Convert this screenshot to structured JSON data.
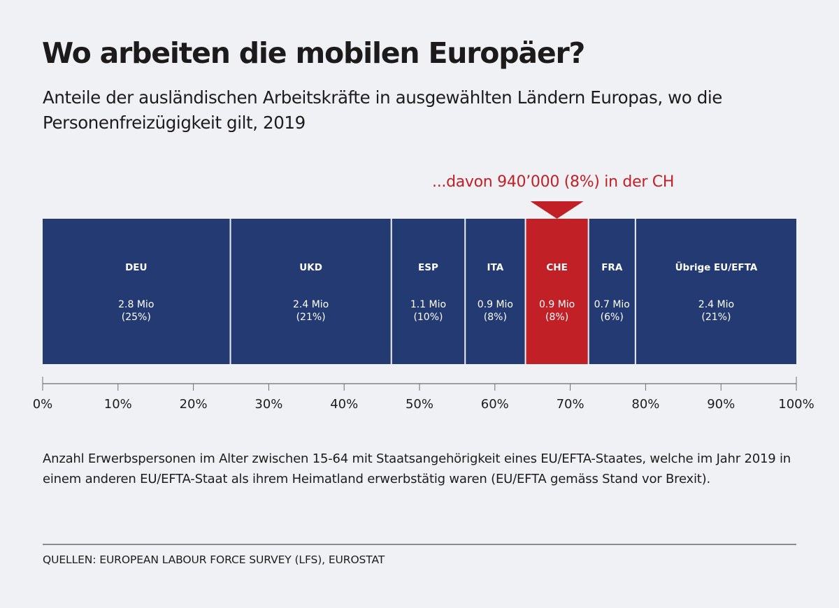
{
  "header": {
    "title": "Wo arbeiten die mobilen Europäer?",
    "subtitle": "Anteile der ausländischen Arbeitskräfte in ausgewählten Ländern Europas, wo die Personenfreizügigkeit gilt, 2019"
  },
  "callout": {
    "text": "...davon 940’000 (8%) in der CH",
    "target": "CHE"
  },
  "colors": {
    "bar_default": "#243a72",
    "bar_highlight": "#c12027",
    "background": "#f0f1f5",
    "axis": "#6e6e72"
  },
  "chart_data": {
    "type": "bar",
    "subtype": "stacked-100-horizontal",
    "title": "Wo arbeiten die mobilen Europäer?",
    "xlabel": "",
    "ylabel": "",
    "xlim": [
      0,
      100
    ],
    "unit": "Mio",
    "categories": [
      "DEU",
      "UKD",
      "ESP",
      "ITA",
      "CHE",
      "FRA",
      "Übrige EU/EFTA"
    ],
    "values": [
      2.8,
      2.4,
      1.1,
      0.9,
      0.94,
      0.7,
      2.4
    ],
    "shares_percent": [
      25,
      21,
      10,
      8,
      8,
      6,
      21
    ],
    "value_labels": [
      "2.8 Mio",
      "2.4 Mio",
      "1.1 Mio",
      "0.9 Mio",
      "0.9 Mio",
      "0.7 Mio",
      "2.4 Mio"
    ],
    "share_labels": [
      "(25%)",
      "(21%)",
      "(10%)",
      "(8%)",
      "(8%)",
      "(6%)",
      "(21%)"
    ],
    "highlight": [
      "CHE"
    ],
    "x_ticks": [
      0,
      10,
      20,
      30,
      40,
      50,
      60,
      70,
      80,
      90,
      100
    ],
    "x_tick_labels": [
      "0%",
      "10%",
      "20%",
      "30%",
      "40%",
      "50%",
      "60%",
      "70%",
      "80%",
      "90%",
      "100%"
    ],
    "grid": false,
    "legend": "none"
  },
  "footer": {
    "note": "Anzahl Erwerbspersonen im Alter zwischen 15-64 mit Staatsangehörigkeit eines EU/EFTA-Staates, welche im Jahr 2019 in einem anderen EU/EFTA-Staat als ihrem Heimatland erwerbstätig waren (EU/EFTA gemäss Stand vor Brexit).",
    "source": "QUELLEN: EUROPEAN LABOUR FORCE SURVEY (LFS), EUROSTAT"
  }
}
